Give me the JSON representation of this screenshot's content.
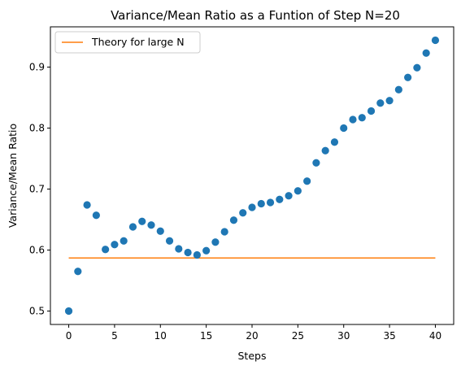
{
  "chart_data": {
    "type": "scatter",
    "title": "Variance/Mean Ratio as a Funtion of Step N=20",
    "xlabel": "Steps",
    "ylabel": "Variance/Mean Ratio",
    "xlim": [
      -2,
      42
    ],
    "ylim": [
      0.478,
      0.966
    ],
    "xticks": [
      0,
      5,
      10,
      15,
      20,
      25,
      30,
      35,
      40
    ],
    "yticks": [
      0.5,
      0.6,
      0.7,
      0.8,
      0.9
    ],
    "xtick_labels": [
      "0",
      "5",
      "10",
      "15",
      "20",
      "25",
      "30",
      "35",
      "40"
    ],
    "ytick_labels": [
      "0.5",
      "0.6",
      "0.7",
      "0.8",
      "0.9"
    ],
    "grid": false,
    "legend": {
      "position": "top-left",
      "entries": [
        "Theory for large N"
      ]
    },
    "series": [
      {
        "type": "scatter",
        "color": "#1f77b4",
        "x": [
          0,
          1,
          2,
          3,
          4,
          5,
          6,
          7,
          8,
          9,
          10,
          11,
          12,
          13,
          14,
          15,
          16,
          17,
          18,
          19,
          20,
          21,
          22,
          23,
          24,
          25,
          26,
          27,
          28,
          29,
          30,
          31,
          32,
          33,
          34,
          35,
          36,
          37,
          38,
          39,
          40
        ],
        "y": [
          0.5,
          0.565,
          0.674,
          0.657,
          0.601,
          0.609,
          0.615,
          0.638,
          0.647,
          0.641,
          0.631,
          0.615,
          0.602,
          0.596,
          0.592,
          0.599,
          0.613,
          0.63,
          0.649,
          0.661,
          0.67,
          0.676,
          0.678,
          0.683,
          0.689,
          0.697,
          0.713,
          0.743,
          0.763,
          0.777,
          0.8,
          0.814,
          0.817,
          0.828,
          0.841,
          0.845,
          0.863,
          0.883,
          0.899,
          0.923,
          0.944
        ]
      },
      {
        "name": "Theory for large N",
        "type": "line",
        "color": "#ff7f0e",
        "x": [
          0,
          40
        ],
        "y": [
          0.587,
          0.587
        ]
      }
    ]
  }
}
